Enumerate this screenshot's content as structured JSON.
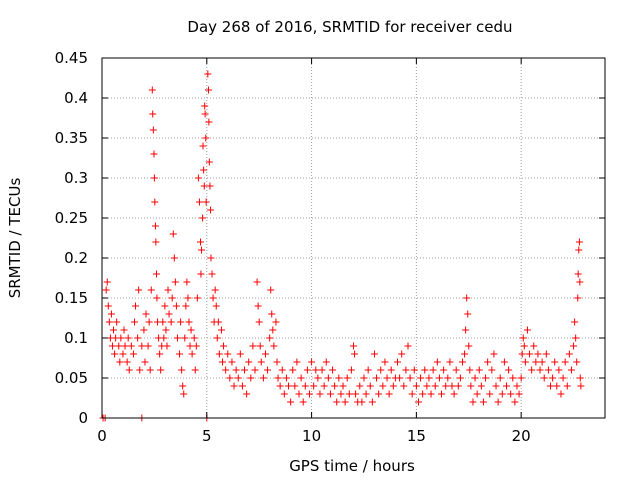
{
  "chart_data": {
    "type": "scatter",
    "title": "Day 268 of 2016, SRMTID for receiver cedu",
    "xlabel": "GPS time / hours",
    "ylabel": "SRMTID / TECUs",
    "xlim": [
      0,
      24
    ],
    "ylim": [
      0,
      0.45
    ],
    "x_ticks": [
      0,
      5,
      10,
      15,
      20
    ],
    "x_tick_labels": [
      "0",
      "5",
      "10",
      "15",
      "20"
    ],
    "y_ticks": [
      0,
      0.05,
      0.1,
      0.15,
      0.2,
      0.25,
      0.3,
      0.35,
      0.4,
      0.45
    ],
    "y_tick_labels": [
      "0",
      "0.05",
      "0.1",
      "0.15",
      "0.2",
      "0.25",
      "0.3",
      "0.35",
      "0.4",
      "0.45"
    ],
    "grid": true,
    "marker": "+",
    "marker_color": "#ff0000",
    "series": [
      {
        "name": "SRMTID",
        "points": [
          [
            0.05,
            0.0
          ],
          [
            0.15,
            0.0
          ],
          [
            0.2,
            0.16
          ],
          [
            0.25,
            0.17
          ],
          [
            0.3,
            0.14
          ],
          [
            0.35,
            0.12
          ],
          [
            0.4,
            0.1
          ],
          [
            0.45,
            0.13
          ],
          [
            0.5,
            0.09
          ],
          [
            0.55,
            0.11
          ],
          [
            0.6,
            0.08
          ],
          [
            0.65,
            0.1
          ],
          [
            0.7,
            0.12
          ],
          [
            0.8,
            0.09
          ],
          [
            0.85,
            0.07
          ],
          [
            0.9,
            0.1
          ],
          [
            1.0,
            0.08
          ],
          [
            1.05,
            0.11
          ],
          [
            1.1,
            0.09
          ],
          [
            1.2,
            0.07
          ],
          [
            1.25,
            0.1
          ],
          [
            1.3,
            0.06
          ],
          [
            1.4,
            0.09
          ],
          [
            1.5,
            0.08
          ],
          [
            1.55,
            0.12
          ],
          [
            1.6,
            0.14
          ],
          [
            1.7,
            0.1
          ],
          [
            1.75,
            0.16
          ],
          [
            1.8,
            0.06
          ],
          [
            1.9,
            0.09
          ],
          [
            1.9,
            0.0
          ],
          [
            2.0,
            0.11
          ],
          [
            2.05,
            0.07
          ],
          [
            2.1,
            0.13
          ],
          [
            2.2,
            0.09
          ],
          [
            2.25,
            0.12
          ],
          [
            2.3,
            0.06
          ],
          [
            2.35,
            0.16
          ],
          [
            2.4,
            0.41
          ],
          [
            2.42,
            0.38
          ],
          [
            2.45,
            0.36
          ],
          [
            2.48,
            0.33
          ],
          [
            2.5,
            0.3
          ],
          [
            2.52,
            0.27
          ],
          [
            2.55,
            0.24
          ],
          [
            2.57,
            0.22
          ],
          [
            2.6,
            0.18
          ],
          [
            2.62,
            0.15
          ],
          [
            2.65,
            0.12
          ],
          [
            2.7,
            0.1
          ],
          [
            2.75,
            0.08
          ],
          [
            2.8,
            0.06
          ],
          [
            2.85,
            0.09
          ],
          [
            2.9,
            0.12
          ],
          [
            2.95,
            0.1
          ],
          [
            3.0,
            0.14
          ],
          [
            3.05,
            0.11
          ],
          [
            3.1,
            0.09
          ],
          [
            3.15,
            0.16
          ],
          [
            3.2,
            0.13
          ],
          [
            3.3,
            0.12
          ],
          [
            3.35,
            0.15
          ],
          [
            3.4,
            0.23
          ],
          [
            3.45,
            0.2
          ],
          [
            3.5,
            0.17
          ],
          [
            3.55,
            0.14
          ],
          [
            3.6,
            0.1
          ],
          [
            3.7,
            0.08
          ],
          [
            3.75,
            0.12
          ],
          [
            3.8,
            0.06
          ],
          [
            3.85,
            0.04
          ],
          [
            3.9,
            0.03
          ],
          [
            3.95,
            0.1
          ],
          [
            4.0,
            0.14
          ],
          [
            4.05,
            0.17
          ],
          [
            4.1,
            0.15
          ],
          [
            4.15,
            0.12
          ],
          [
            4.2,
            0.09
          ],
          [
            4.25,
            0.11
          ],
          [
            4.3,
            0.08
          ],
          [
            4.4,
            0.1
          ],
          [
            4.45,
            0.06
          ],
          [
            4.5,
            0.09
          ],
          [
            4.55,
            0.15
          ],
          [
            4.6,
            0.3
          ],
          [
            4.65,
            0.27
          ],
          [
            4.7,
            0.22
          ],
          [
            4.72,
            0.18
          ],
          [
            4.75,
            0.21
          ],
          [
            4.8,
            0.25
          ],
          [
            4.82,
            0.34
          ],
          [
            4.85,
            0.31
          ],
          [
            4.88,
            0.29
          ],
          [
            4.9,
            0.39
          ],
          [
            4.92,
            0.38
          ],
          [
            4.95,
            0.35
          ],
          [
            4.97,
            0.27
          ],
          [
            5.0,
            0.0
          ],
          [
            5.05,
            0.43
          ],
          [
            5.08,
            0.41
          ],
          [
            5.1,
            0.37
          ],
          [
            5.12,
            0.32
          ],
          [
            5.15,
            0.29
          ],
          [
            5.18,
            0.26
          ],
          [
            5.2,
            0.2
          ],
          [
            5.25,
            0.18
          ],
          [
            5.3,
            0.15
          ],
          [
            5.35,
            0.12
          ],
          [
            5.4,
            0.16
          ],
          [
            5.45,
            0.14
          ],
          [
            5.5,
            0.1
          ],
          [
            5.55,
            0.12
          ],
          [
            5.6,
            0.08
          ],
          [
            5.7,
            0.11
          ],
          [
            5.75,
            0.07
          ],
          [
            5.8,
            0.09
          ],
          [
            5.9,
            0.06
          ],
          [
            6.0,
            0.08
          ],
          [
            6.1,
            0.05
          ],
          [
            6.2,
            0.07
          ],
          [
            6.3,
            0.04
          ],
          [
            6.4,
            0.06
          ],
          [
            6.5,
            0.05
          ],
          [
            6.6,
            0.08
          ],
          [
            6.7,
            0.04
          ],
          [
            6.8,
            0.06
          ],
          [
            6.9,
            0.03
          ],
          [
            7.0,
            0.07
          ],
          [
            7.1,
            0.05
          ],
          [
            7.2,
            0.09
          ],
          [
            7.3,
            0.06
          ],
          [
            7.4,
            0.17
          ],
          [
            7.45,
            0.14
          ],
          [
            7.5,
            0.12
          ],
          [
            7.55,
            0.09
          ],
          [
            7.6,
            0.07
          ],
          [
            7.7,
            0.05
          ],
          [
            7.8,
            0.08
          ],
          [
            7.9,
            0.06
          ],
          [
            8.0,
            0.1
          ],
          [
            8.05,
            0.16
          ],
          [
            8.1,
            0.13
          ],
          [
            8.15,
            0.11
          ],
          [
            8.2,
            0.09
          ],
          [
            8.3,
            0.12
          ],
          [
            8.35,
            0.07
          ],
          [
            8.4,
            0.05
          ],
          [
            8.5,
            0.04
          ],
          [
            8.6,
            0.06
          ],
          [
            8.7,
            0.03
          ],
          [
            8.8,
            0.05
          ],
          [
            8.9,
            0.04
          ],
          [
            9.0,
            0.02
          ],
          [
            9.1,
            0.06
          ],
          [
            9.2,
            0.04
          ],
          [
            9.3,
            0.07
          ],
          [
            9.4,
            0.03
          ],
          [
            9.5,
            0.05
          ],
          [
            9.6,
            0.02
          ],
          [
            9.7,
            0.04
          ],
          [
            9.8,
            0.06
          ],
          [
            9.9,
            0.03
          ],
          [
            10.0,
            0.07
          ],
          [
            10.1,
            0.04
          ],
          [
            10.2,
            0.06
          ],
          [
            10.3,
            0.05
          ],
          [
            10.4,
            0.03
          ],
          [
            10.5,
            0.06
          ],
          [
            10.6,
            0.04
          ],
          [
            10.7,
            0.07
          ],
          [
            10.8,
            0.05
          ],
          [
            10.9,
            0.03
          ],
          [
            11.0,
            0.06
          ],
          [
            11.1,
            0.04
          ],
          [
            11.2,
            0.02
          ],
          [
            11.3,
            0.05
          ],
          [
            11.4,
            0.03
          ],
          [
            11.5,
            0.04
          ],
          [
            11.6,
            0.02
          ],
          [
            11.7,
            0.05
          ],
          [
            11.8,
            0.03
          ],
          [
            11.9,
            0.06
          ],
          [
            12.0,
            0.09
          ],
          [
            12.05,
            0.08
          ],
          [
            12.1,
            0.03
          ],
          [
            12.2,
            0.02
          ],
          [
            12.3,
            0.04
          ],
          [
            12.4,
            0.02
          ],
          [
            12.5,
            0.05
          ],
          [
            12.6,
            0.03
          ],
          [
            12.7,
            0.06
          ],
          [
            12.8,
            0.04
          ],
          [
            12.9,
            0.02
          ],
          [
            13.0,
            0.08
          ],
          [
            13.1,
            0.05
          ],
          [
            13.2,
            0.03
          ],
          [
            13.3,
            0.06
          ],
          [
            13.4,
            0.04
          ],
          [
            13.5,
            0.07
          ],
          [
            13.6,
            0.05
          ],
          [
            13.7,
            0.03
          ],
          [
            13.8,
            0.06
          ],
          [
            13.9,
            0.04
          ],
          [
            14.0,
            0.05
          ],
          [
            14.1,
            0.07
          ],
          [
            14.2,
            0.05
          ],
          [
            14.3,
            0.08
          ],
          [
            14.4,
            0.04
          ],
          [
            14.5,
            0.06
          ],
          [
            14.6,
            0.09
          ],
          [
            14.7,
            0.05
          ],
          [
            14.8,
            0.03
          ],
          [
            14.9,
            0.06
          ],
          [
            15.0,
            0.04
          ],
          [
            15.1,
            0.02
          ],
          [
            15.2,
            0.05
          ],
          [
            15.3,
            0.03
          ],
          [
            15.4,
            0.06
          ],
          [
            15.5,
            0.04
          ],
          [
            15.6,
            0.05
          ],
          [
            15.7,
            0.03
          ],
          [
            15.8,
            0.06
          ],
          [
            15.9,
            0.04
          ],
          [
            16.0,
            0.07
          ],
          [
            16.1,
            0.05
          ],
          [
            16.2,
            0.03
          ],
          [
            16.3,
            0.06
          ],
          [
            16.4,
            0.04
          ],
          [
            16.5,
            0.05
          ],
          [
            16.6,
            0.07
          ],
          [
            16.7,
            0.04
          ],
          [
            16.8,
            0.03
          ],
          [
            16.9,
            0.06
          ],
          [
            17.0,
            0.04
          ],
          [
            17.1,
            0.05
          ],
          [
            17.2,
            0.07
          ],
          [
            17.3,
            0.08
          ],
          [
            17.35,
            0.11
          ],
          [
            17.4,
            0.15
          ],
          [
            17.45,
            0.13
          ],
          [
            17.5,
            0.09
          ],
          [
            17.55,
            0.06
          ],
          [
            17.6,
            0.04
          ],
          [
            17.7,
            0.02
          ],
          [
            17.8,
            0.05
          ],
          [
            17.9,
            0.03
          ],
          [
            18.0,
            0.06
          ],
          [
            18.1,
            0.04
          ],
          [
            18.2,
            0.02
          ],
          [
            18.3,
            0.05
          ],
          [
            18.4,
            0.07
          ],
          [
            18.5,
            0.03
          ],
          [
            18.6,
            0.06
          ],
          [
            18.7,
            0.08
          ],
          [
            18.8,
            0.04
          ],
          [
            18.9,
            0.02
          ],
          [
            19.0,
            0.05
          ],
          [
            19.1,
            0.03
          ],
          [
            19.2,
            0.07
          ],
          [
            19.3,
            0.04
          ],
          [
            19.4,
            0.06
          ],
          [
            19.5,
            0.03
          ],
          [
            19.6,
            0.05
          ],
          [
            19.7,
            0.02
          ],
          [
            19.8,
            0.04
          ],
          [
            19.9,
            0.03
          ],
          [
            20.0,
            0.05
          ],
          [
            20.05,
            0.08
          ],
          [
            20.1,
            0.1
          ],
          [
            20.15,
            0.09
          ],
          [
            20.2,
            0.07
          ],
          [
            20.3,
            0.11
          ],
          [
            20.4,
            0.08
          ],
          [
            20.5,
            0.06
          ],
          [
            20.6,
            0.09
          ],
          [
            20.7,
            0.07
          ],
          [
            20.8,
            0.08
          ],
          [
            20.9,
            0.06
          ],
          [
            21.0,
            0.07
          ],
          [
            21.1,
            0.05
          ],
          [
            21.2,
            0.08
          ],
          [
            21.3,
            0.06
          ],
          [
            21.4,
            0.04
          ],
          [
            21.5,
            0.05
          ],
          [
            21.6,
            0.07
          ],
          [
            21.7,
            0.04
          ],
          [
            21.8,
            0.06
          ],
          [
            21.9,
            0.03
          ],
          [
            22.0,
            0.05
          ],
          [
            22.1,
            0.07
          ],
          [
            22.2,
            0.04
          ],
          [
            22.3,
            0.08
          ],
          [
            22.4,
            0.06
          ],
          [
            22.5,
            0.09
          ],
          [
            22.55,
            0.12
          ],
          [
            22.6,
            0.1
          ],
          [
            22.65,
            0.07
          ],
          [
            22.7,
            0.15
          ],
          [
            22.72,
            0.18
          ],
          [
            22.75,
            0.21
          ],
          [
            22.78,
            0.22
          ],
          [
            22.8,
            0.17
          ],
          [
            22.82,
            0.05
          ],
          [
            22.85,
            0.04
          ]
        ]
      }
    ]
  }
}
